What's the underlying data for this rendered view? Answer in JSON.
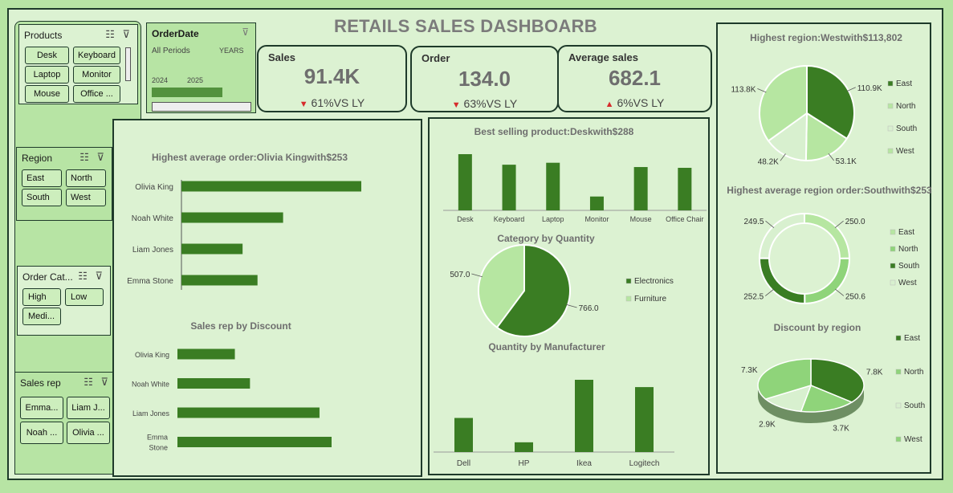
{
  "dashboard": {
    "title": "RETAILS SALES DASHBOARB"
  },
  "slicers": {
    "products": {
      "title": "Products",
      "items": [
        "Desk",
        "Keyboard",
        "Laptop",
        "Monitor",
        "Mouse",
        "Office ..."
      ]
    },
    "orderdate": {
      "title": "OrderDate",
      "period": "All Periods",
      "unit": "YEARS",
      "years": [
        "2024",
        "2025"
      ]
    },
    "region": {
      "title": "Region",
      "items": [
        "East",
        "North",
        "South",
        "West"
      ]
    },
    "ordercat": {
      "title": "Order Cat...",
      "items": [
        "High",
        "Low",
        "Medi..."
      ]
    },
    "salesrep": {
      "title": "Sales rep",
      "items": [
        "Emma...",
        "Liam J...",
        "Noah ...",
        "Olivia ..."
      ]
    }
  },
  "kpis": {
    "sales": {
      "label": "Sales",
      "value": "91.4K",
      "change": "61%VS LY",
      "arrow": "▼",
      "arrow_color": "#d62b2b"
    },
    "order": {
      "label": "Order",
      "value": "134.0",
      "change": "63%VS LY",
      "arrow": "▼",
      "arrow_color": "#d62b2b"
    },
    "avg": {
      "label": "Average sales",
      "value": "682.1",
      "change": "6%VS LY",
      "arrow": "▲",
      "arrow_color": "#d62b2b"
    }
  },
  "colors": {
    "dark": "#3a7d23",
    "mid": "#8fd47a",
    "light": "#b6e6a1",
    "pale": "#d8f0cf"
  },
  "chart_data": [
    {
      "id": "avg-order",
      "type": "bar",
      "orientation": "horizontal",
      "title": "Highest average order:Olivia Kingwith$253",
      "categories": [
        "Olivia King",
        "Noah White",
        "Liam Jones",
        "Emma Stone"
      ],
      "values": [
        253,
        143,
        86,
        107
      ]
    },
    {
      "id": "discount-rep",
      "type": "bar",
      "orientation": "horizontal",
      "title": "Sales rep by Discount",
      "categories": [
        "Olivia King",
        "Noah White",
        "Liam Jones",
        "Emma Stone"
      ],
      "values": [
        1.9,
        2.4,
        4.7,
        5.1
      ]
    },
    {
      "id": "best-product",
      "type": "bar",
      "title": "Best selling product:Deskwith$288",
      "categories": [
        "Desk",
        "Keyboard",
        "Laptop",
        "Monitor",
        "Mouse",
        "Office Chair"
      ],
      "values": [
        288,
        234,
        244,
        71,
        222,
        218
      ]
    },
    {
      "id": "category-qty",
      "type": "pie",
      "title": "Category by Quantity",
      "labels": [
        "Electronics",
        "Furniture"
      ],
      "values": [
        766.0,
        507.0
      ],
      "value_labels": [
        "766.0",
        "507.0"
      ]
    },
    {
      "id": "manufacturer-qty",
      "type": "bar",
      "title": "Quantity by Manufacturer",
      "categories": [
        "Dell",
        "HP",
        "Ikea",
        "Logitech"
      ],
      "values": [
        210,
        60,
        445,
        400
      ]
    },
    {
      "id": "region-sales",
      "type": "pie",
      "title": "Highest region:Westwith$113,802",
      "labels": [
        "East",
        "North",
        "South",
        "West"
      ],
      "values": [
        110.9,
        53.1,
        48.2,
        113.8
      ],
      "value_labels": [
        "110.9K",
        "53.1K",
        "48.2K",
        "113.8K"
      ]
    },
    {
      "id": "region-avg",
      "type": "donut",
      "title": "Highest average region order:Southwith$253",
      "labels": [
        "East",
        "North",
        "South",
        "West"
      ],
      "values": [
        250.0,
        250.6,
        252.5,
        249.5
      ],
      "value_labels": [
        "250.0",
        "250.6",
        "252.5",
        "249.5"
      ]
    },
    {
      "id": "region-discount",
      "type": "pie3d",
      "title": "Discount by  region",
      "labels": [
        "East",
        "North",
        "South",
        "West"
      ],
      "values": [
        7.8,
        3.7,
        2.9,
        7.3
      ],
      "value_labels": [
        "7.8K",
        "3.7K",
        "2.9K",
        "7.3K"
      ]
    }
  ]
}
